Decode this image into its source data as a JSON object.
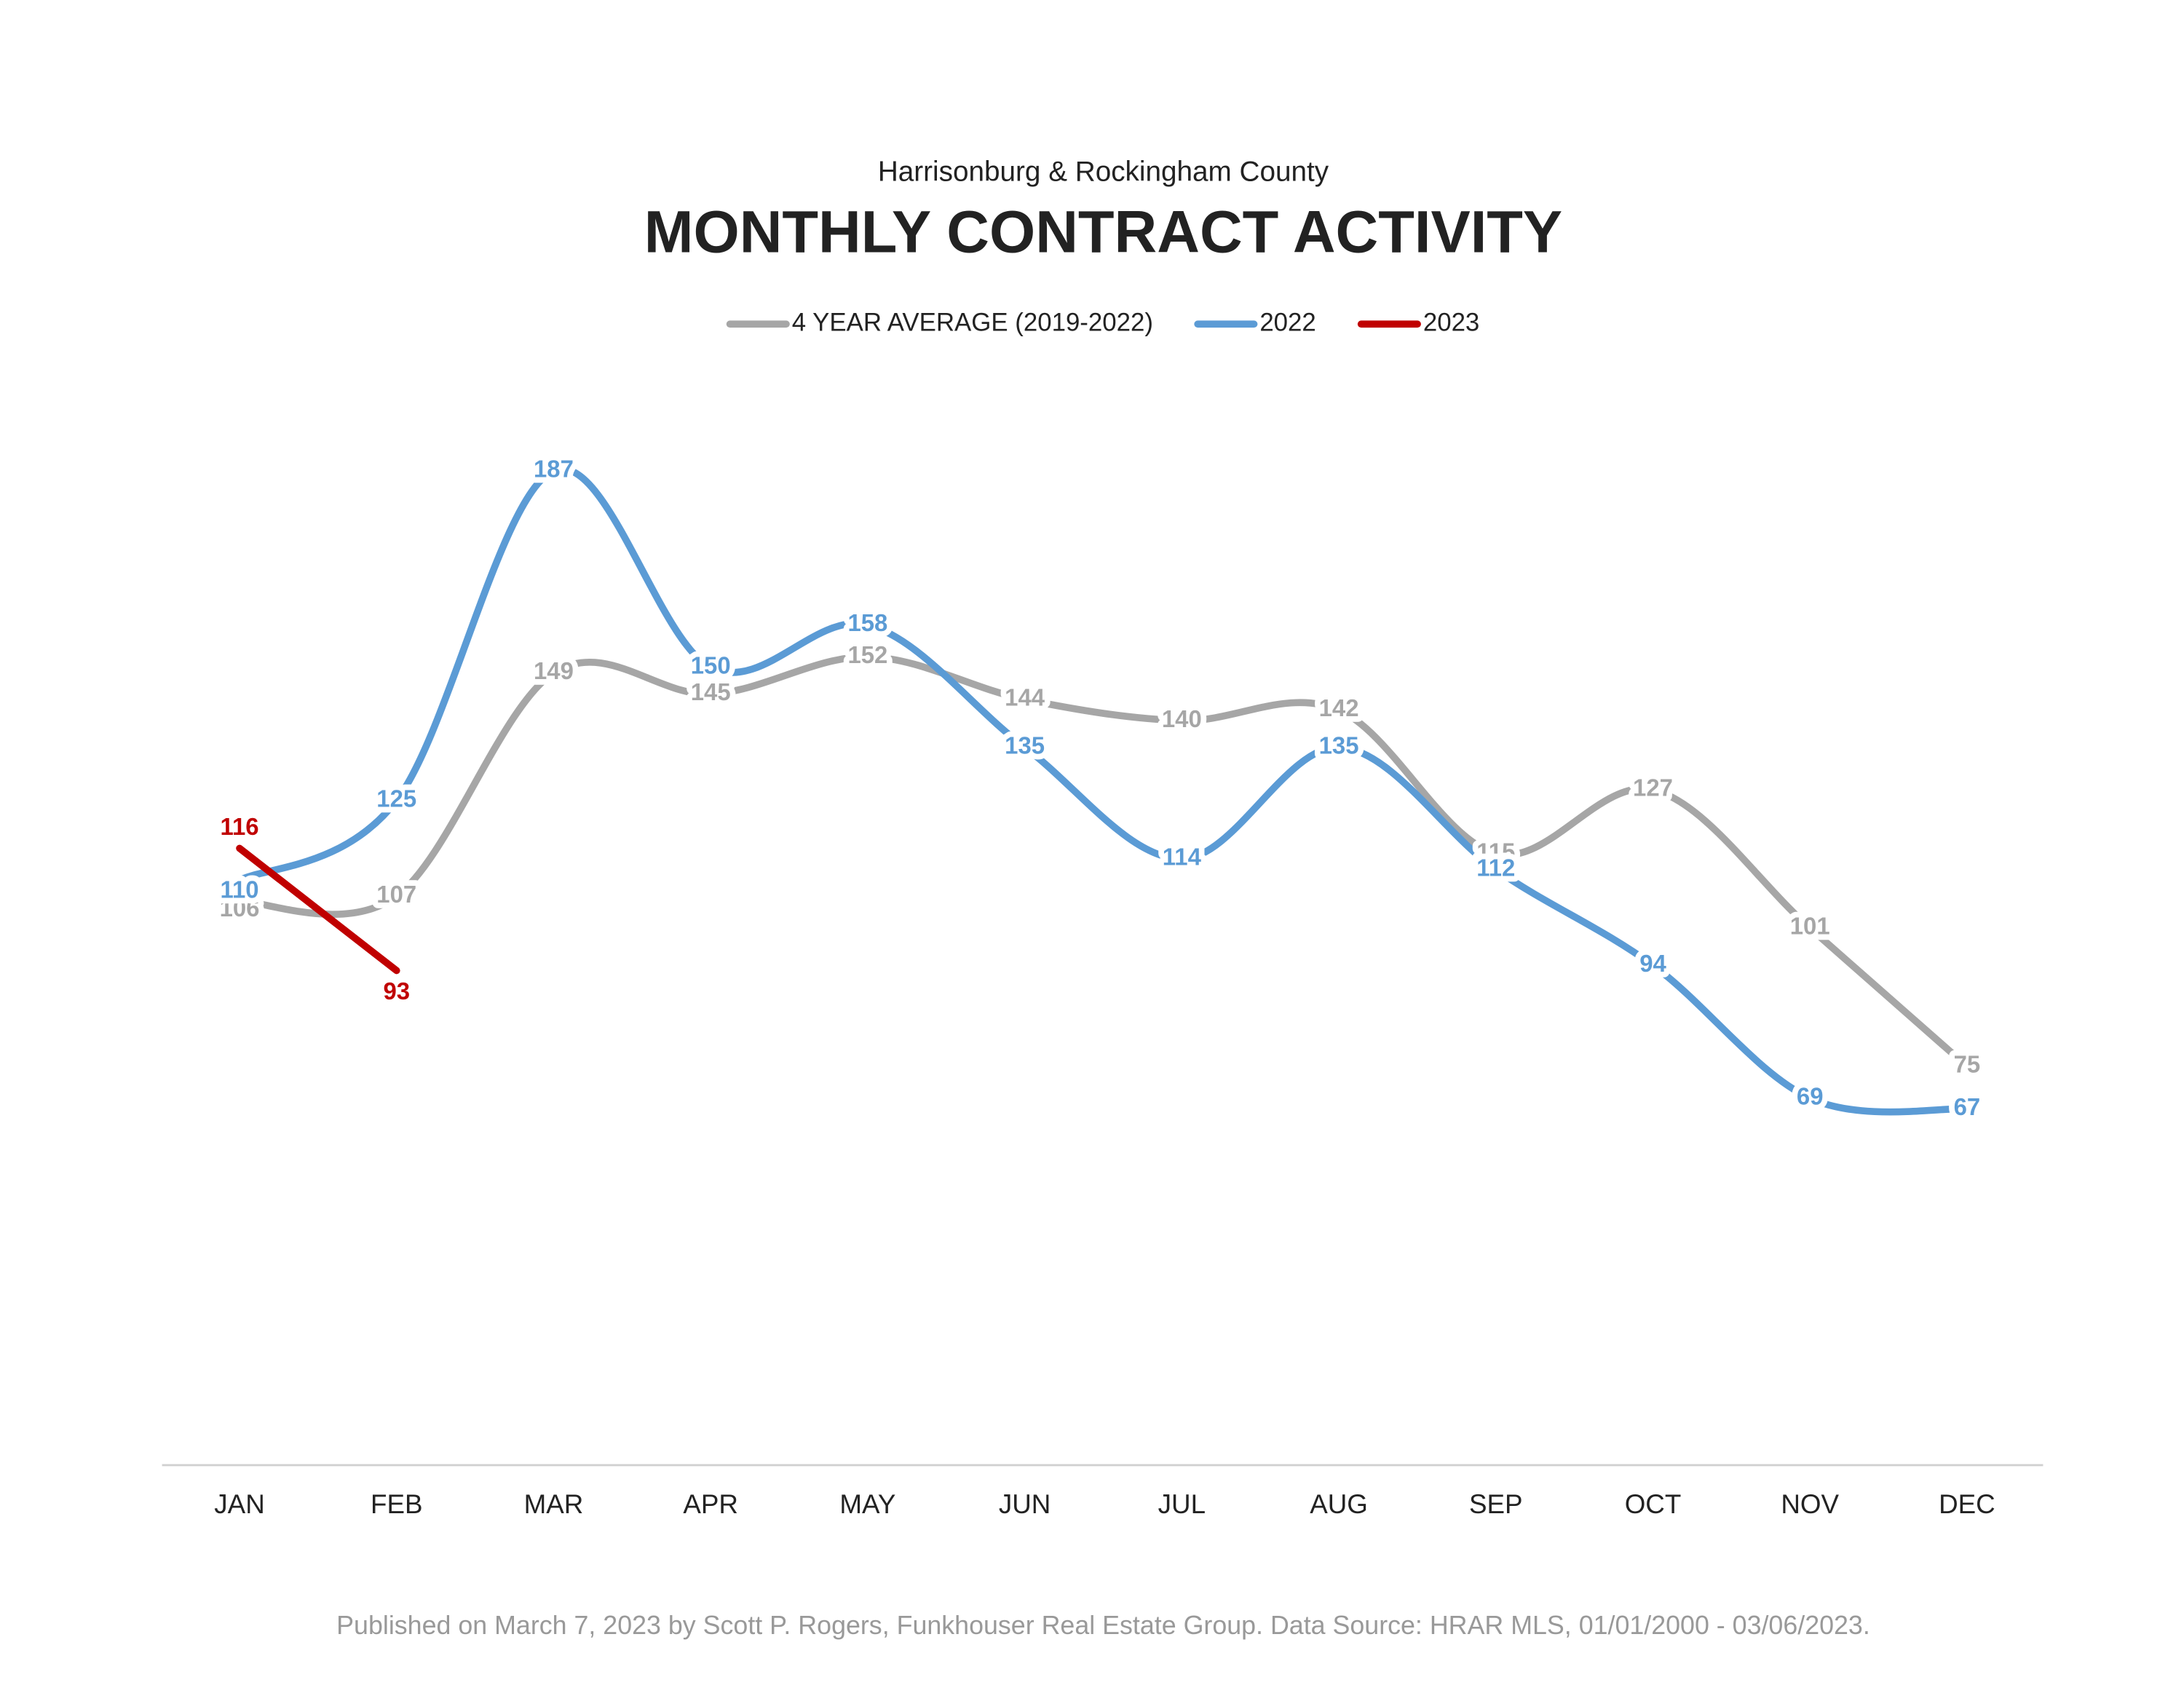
{
  "chart_data": {
    "type": "line",
    "subtitle": "Harrisonburg & Rockingham County",
    "title": "MONTHLY CONTRACT ACTIVITY",
    "footer": "Published on March 7, 2023 by Scott P. Rogers, Funkhouser Real Estate Group. Data Source: HRAR MLS, 01/01/2000 - 03/06/2023.",
    "categories": [
      "JAN",
      "FEB",
      "MAR",
      "APR",
      "MAY",
      "JUN",
      "JUL",
      "AUG",
      "SEP",
      "OCT",
      "NOV",
      "DEC"
    ],
    "ylim": [
      0,
      200
    ],
    "legend": "top",
    "series": [
      {
        "name": "4 YEAR AVERAGE (2019-2022)",
        "color": "#a6a6a6",
        "values": [
          106,
          107,
          149,
          145,
          152,
          144,
          140,
          142,
          115,
          127,
          101,
          75
        ]
      },
      {
        "name": "2022",
        "color": "#5b9bd5",
        "values": [
          110,
          125,
          187,
          150,
          158,
          135,
          114,
          135,
          112,
          94,
          69,
          67
        ]
      },
      {
        "name": "2023",
        "color": "#c00000",
        "values": [
          116,
          93,
          null,
          null,
          null,
          null,
          null,
          null,
          null,
          null,
          null,
          null
        ]
      }
    ]
  }
}
